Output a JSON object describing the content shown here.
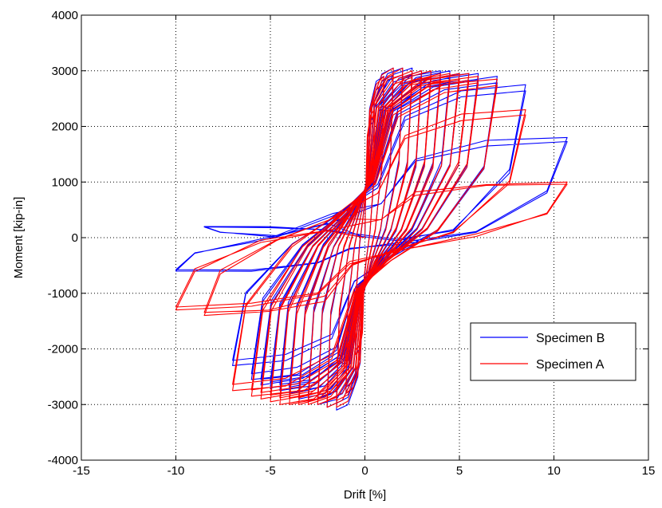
{
  "chart_data": {
    "type": "line",
    "title": "",
    "xlabel": "Drift [%]",
    "ylabel": "Moment [kip-in]",
    "xlim": [
      -15,
      15
    ],
    "ylim": [
      -4000,
      4000
    ],
    "xticks": [
      -15,
      -10,
      -5,
      0,
      5,
      10,
      15
    ],
    "yticks": [
      -4000,
      -3000,
      -2000,
      -1000,
      0,
      1000,
      2000,
      3000,
      4000
    ],
    "xtick_labels": [
      "-15",
      "-10",
      "-5",
      "0",
      "5",
      "10",
      "15"
    ],
    "ytick_labels": [
      "-4000",
      "-3000",
      "-2000",
      "-1000",
      "0",
      "1000",
      "2000",
      "3000",
      "4000"
    ],
    "grid": true,
    "legend_position": "lower-right",
    "series": [
      {
        "name": "Specimen B",
        "color": "#0000ff",
        "cycle_peaks": [
          [
            0.5,
            2200,
            -0.5,
            -2100
          ],
          [
            1.0,
            2900,
            -1.0,
            -2800
          ],
          [
            1.5,
            3050,
            -1.5,
            -3100
          ],
          [
            2.0,
            3050,
            -2.0,
            -3050
          ],
          [
            2.5,
            3050,
            -2.5,
            -3000
          ],
          [
            3.0,
            3000,
            -3.0,
            -2950
          ],
          [
            3.5,
            3000,
            -3.5,
            -2900
          ],
          [
            4.0,
            3000,
            -4.0,
            -2800
          ],
          [
            4.5,
            3000,
            -4.5,
            -2750
          ],
          [
            5.0,
            2950,
            -5.0,
            -2700
          ],
          [
            5.5,
            2950,
            -5.5,
            -2650
          ],
          [
            6.0,
            2950,
            -6.0,
            -2550
          ],
          [
            7.0,
            2900,
            -7.0,
            -2300
          ],
          [
            8.5,
            2750,
            -8.5,
            200
          ],
          [
            10.7,
            1800,
            -10.0,
            -600
          ]
        ]
      },
      {
        "name": "Specimen A",
        "color": "#ff0000",
        "cycle_peaks": [
          [
            0.5,
            2300,
            -0.5,
            -2100
          ],
          [
            1.0,
            2900,
            -1.0,
            -2800
          ],
          [
            1.5,
            3050,
            -1.5,
            -3050
          ],
          [
            2.0,
            3050,
            -2.0,
            -3050
          ],
          [
            2.5,
            3000,
            -2.5,
            -3000
          ],
          [
            3.0,
            3000,
            -3.0,
            -3000
          ],
          [
            3.5,
            3000,
            -3.5,
            -3000
          ],
          [
            4.0,
            2950,
            -4.0,
            -3000
          ],
          [
            4.5,
            2950,
            -4.5,
            -3000
          ],
          [
            5.0,
            2950,
            -5.0,
            -2950
          ],
          [
            5.5,
            2950,
            -5.5,
            -2900
          ],
          [
            6.0,
            2900,
            -6.0,
            -2850
          ],
          [
            7.0,
            2850,
            -7.0,
            -2750
          ],
          [
            8.5,
            2300,
            -8.5,
            -1400
          ],
          [
            10.7,
            1000,
            -10.0,
            -1300
          ]
        ]
      }
    ]
  }
}
